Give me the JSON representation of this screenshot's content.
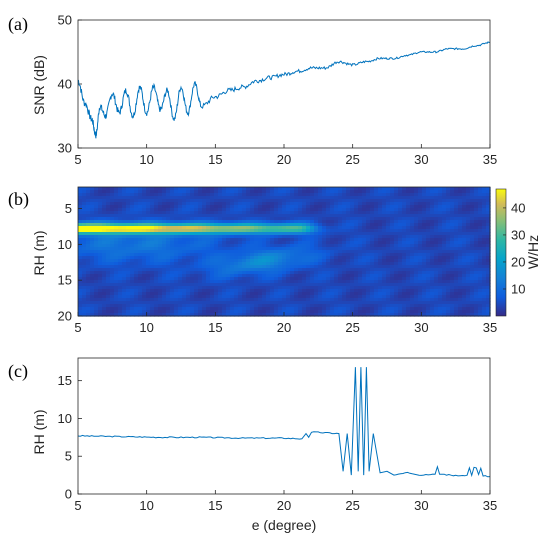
{
  "chart_data": [
    {
      "panel_label": "(a)",
      "type": "line",
      "xlabel": "",
      "ylabel": "SNR (dB)",
      "xlim": [
        5,
        35
      ],
      "ylim": [
        30,
        50
      ],
      "xticks": [
        "5",
        "10",
        "15",
        "20",
        "25",
        "30",
        "35"
      ],
      "yticks": [
        "30",
        "40",
        "50"
      ],
      "color": "#0072BD",
      "series": [
        {
          "x": [
            5.0,
            5.5,
            6.0,
            6.3,
            6.6,
            7.0,
            7.5,
            8.0,
            8.5,
            9.0,
            9.5,
            10.0,
            10.5,
            11.0,
            11.5,
            12.0,
            12.5,
            13.0,
            13.5,
            14.0,
            15.0,
            16.0,
            17.0,
            18.0,
            19.0,
            20.0,
            21.0,
            22.0,
            23.0,
            24.0,
            25.0,
            26.0,
            27.0,
            28.0,
            29.0,
            30.0,
            31.0,
            32.0,
            33.0,
            34.0,
            35.0
          ],
          "y": [
            40.5,
            37.0,
            34.5,
            32.0,
            36.5,
            35.0,
            38.5,
            35.5,
            39.0,
            35.0,
            39.5,
            35.5,
            39.5,
            36.0,
            39.0,
            34.5,
            39.5,
            35.5,
            40.0,
            36.5,
            38.0,
            39.0,
            39.5,
            40.5,
            41.0,
            41.5,
            42.0,
            42.5,
            42.5,
            43.5,
            43.0,
            43.5,
            44.0,
            44.0,
            44.5,
            45.0,
            45.0,
            45.5,
            45.5,
            46.0,
            46.5
          ]
        }
      ]
    },
    {
      "panel_label": "(b)",
      "type": "heatmap",
      "xlabel": "",
      "ylabel": "RH (m)",
      "xlim": [
        5,
        35
      ],
      "ylim": [
        20,
        2
      ],
      "xticks": [
        "5",
        "10",
        "15",
        "20",
        "25",
        "30",
        "35"
      ],
      "yticks": [
        "5",
        "10",
        "15",
        "20"
      ],
      "colorbar": {
        "label": "W/Hz",
        "range": [
          0,
          47
        ],
        "ticks": [
          "10",
          "20",
          "30",
          "40"
        ],
        "colormap": "parula"
      },
      "features": [
        {
          "desc": "strong ridge",
          "x_range": [
            5,
            21
          ],
          "rh": 7.8,
          "peak": 47
        },
        {
          "desc": "secondary band",
          "x_range": [
            16,
            25
          ],
          "rh": 12.5,
          "peak": 20
        }
      ]
    },
    {
      "panel_label": "(c)",
      "type": "line",
      "xlabel": "e (degree)",
      "ylabel": "RH (m)",
      "xlim": [
        5,
        35
      ],
      "ylim": [
        0,
        18
      ],
      "xticks": [
        "5",
        "10",
        "15",
        "20",
        "25",
        "30",
        "35"
      ],
      "yticks": [
        "0",
        "5",
        "10",
        "15"
      ],
      "color": "#0072BD",
      "series": [
        {
          "x": [
            5.0,
            8.0,
            11.0,
            14.0,
            17.0,
            20.0,
            21.3,
            21.6,
            21.8,
            22.0,
            24.0,
            24.3,
            24.6,
            24.9,
            25.2,
            25.4,
            25.6,
            25.8,
            26.0,
            26.2,
            26.5,
            27.0,
            27.5,
            28.0,
            29.0,
            30.0,
            31.0,
            32.0,
            33.0,
            34.0,
            35.0
          ],
          "y": [
            7.7,
            7.6,
            7.5,
            7.5,
            7.4,
            7.4,
            7.3,
            8.0,
            7.5,
            8.2,
            8.0,
            3.0,
            8.0,
            2.5,
            16.8,
            3.0,
            16.8,
            2.5,
            16.8,
            3.0,
            8.0,
            2.8,
            3.0,
            2.5,
            2.8,
            2.5,
            2.7,
            2.5,
            2.4,
            2.6,
            2.3
          ]
        }
      ]
    }
  ]
}
